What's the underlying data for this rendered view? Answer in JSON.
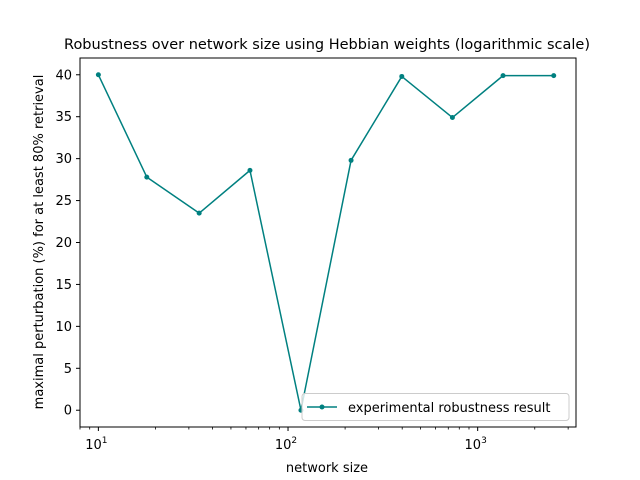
{
  "chart_data": {
    "type": "line",
    "title": "Robustness over network size using Hebbian weights (logarithmic scale)",
    "xlabel": "network size",
    "ylabel": "maximal perturbation (%) for at least 80% retrieval",
    "xscale": "log",
    "xlim": [
      8,
      3300
    ],
    "ylim": [
      -2,
      42
    ],
    "yticks": [
      0,
      5,
      10,
      15,
      20,
      25,
      30,
      35,
      40
    ],
    "xticks": [
      {
        "value": 10,
        "base": "10",
        "exp": "1"
      },
      {
        "value": 100,
        "base": "10",
        "exp": "2"
      },
      {
        "value": 1000,
        "base": "10",
        "exp": "3"
      }
    ],
    "grid": false,
    "legend_position": "lower-right",
    "series": [
      {
        "name": "experimental robustness result",
        "color": "#008080",
        "marker": "dot",
        "x": [
          10,
          18,
          34,
          63,
          117,
          215,
          398,
          736,
          1361,
          2518
        ],
        "y": [
          40,
          27.8,
          23.5,
          28.6,
          0,
          29.8,
          39.8,
          34.9,
          39.9,
          39.9
        ]
      }
    ]
  }
}
